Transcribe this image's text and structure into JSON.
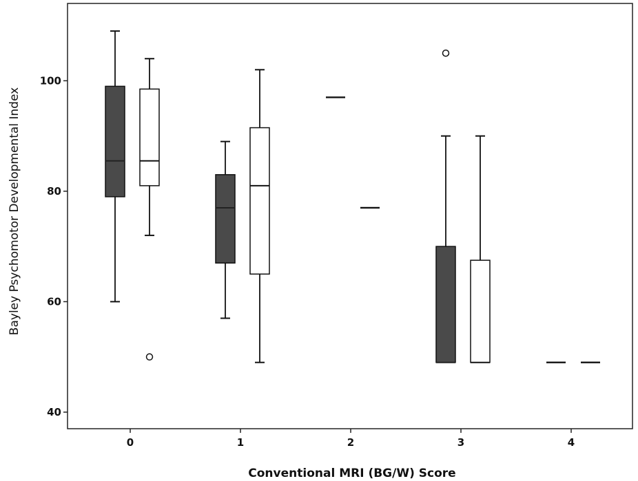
{
  "chart_data": {
    "type": "boxplot",
    "xlabel": "Conventional MRI (BG/W) Score",
    "ylabel": "Bayley Psychomotor Developmental Index",
    "categories": [
      "0",
      "1",
      "2",
      "3",
      "4"
    ],
    "yticks": [
      "40",
      "60",
      "80",
      "100"
    ],
    "ylim": [
      37,
      114
    ],
    "grid": false,
    "legend": "none",
    "series": [
      {
        "fill": "#4a4a4a",
        "boxes": [
          {
            "category": "0",
            "min": 60,
            "q1": 79,
            "median": 85.5,
            "q3": 99,
            "max": 109,
            "outliers": []
          },
          {
            "category": "1",
            "min": 57,
            "q1": 67,
            "median": 77,
            "q3": 83,
            "max": 89,
            "outliers": []
          },
          {
            "category": "2",
            "min": 97,
            "q1": 97,
            "median": 97,
            "q3": 97,
            "max": 97,
            "outliers": []
          },
          {
            "category": "3",
            "min": 49,
            "q1": 49,
            "median": 49,
            "q3": 70,
            "max": 90,
            "outliers": [
              105
            ]
          },
          {
            "category": "4",
            "min": 49,
            "q1": 49,
            "median": 49,
            "q3": 49,
            "max": 49,
            "outliers": []
          }
        ]
      },
      {
        "fill": "#ffffff",
        "boxes": [
          {
            "category": "0",
            "min": 72,
            "q1": 81,
            "median": 85.5,
            "q3": 98.5,
            "max": 104,
            "outliers": [
              50
            ]
          },
          {
            "category": "1",
            "min": 49,
            "q1": 65,
            "median": 81,
            "q3": 91.5,
            "max": 102,
            "outliers": []
          },
          {
            "category": "2",
            "min": 77,
            "q1": 77,
            "median": 77,
            "q3": 77,
            "max": 77,
            "outliers": []
          },
          {
            "category": "3",
            "min": 49,
            "q1": 49,
            "median": 49,
            "q3": 67.5,
            "max": 90,
            "outliers": []
          },
          {
            "category": "4",
            "min": 49,
            "q1": 49,
            "median": 49,
            "q3": 49,
            "max": 49,
            "outliers": []
          }
        ]
      }
    ]
  }
}
